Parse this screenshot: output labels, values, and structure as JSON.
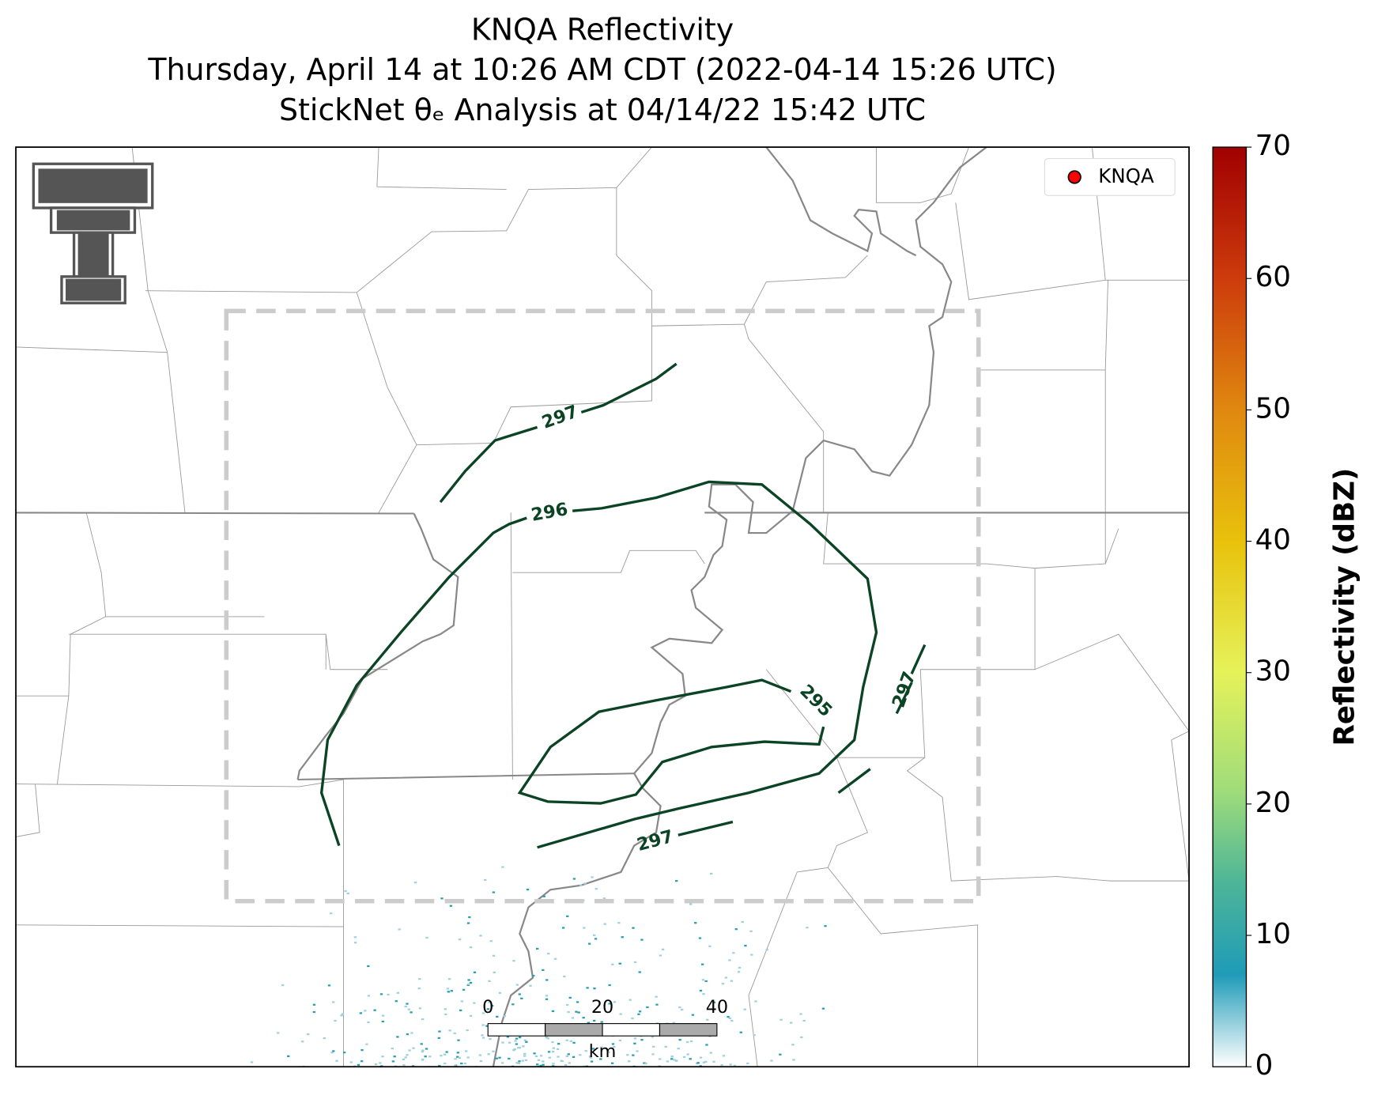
{
  "title": "KNQA Reflectivity",
  "subtitle": "Thursday, April 14 at 10:26 AM CDT (2022-04-14 15:26 UTC)",
  "analysis_line": "StickNet θₑ Analysis at 04/14/22 15:42 UTC",
  "legend": {
    "label": "KNQA",
    "color": "#ff0000"
  },
  "colorbar": {
    "label": "Reflectivity (dBZ)",
    "lim": [
      0,
      70
    ],
    "ticks": [
      0,
      10,
      20,
      30,
      40,
      50,
      60,
      70
    ]
  },
  "scale_bar": {
    "ticks": [
      0,
      20,
      40
    ],
    "unit": "km"
  },
  "contours": [
    {
      "value": 297
    },
    {
      "value": 296
    },
    {
      "value": 295
    },
    {
      "value": 297
    },
    {
      "value": 297
    }
  ]
}
